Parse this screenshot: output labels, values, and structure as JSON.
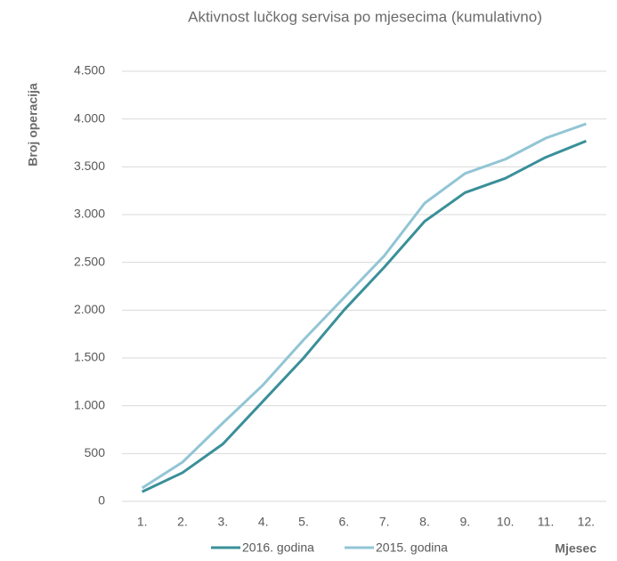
{
  "chart_data": {
    "type": "line",
    "title": "Aktivnost lučkog servisa po mjesecima (kumulativno)",
    "y_label": "Broj operacija",
    "x_label": "Mjesec",
    "categories": [
      "1.",
      "2.",
      "3.",
      "4.",
      "5.",
      "6.",
      "7.",
      "8.",
      "9.",
      "10.",
      "11.",
      "12."
    ],
    "series": [
      {
        "name": "2016. godina",
        "color": "#3a8f99",
        "values": [
          100,
          300,
          600,
          1050,
          1500,
          2000,
          2450,
          2930,
          3230,
          3380,
          3600,
          3770
        ]
      },
      {
        "name": "2015. godina",
        "color": "#92c5d5",
        "values": [
          140,
          410,
          820,
          1220,
          1690,
          2130,
          2570,
          3120,
          3430,
          3580,
          3800,
          3950
        ]
      }
    ],
    "ylim": [
      0,
      4500
    ],
    "yticks": [
      0,
      500,
      {
        "value": 1000,
        "label": "1.000"
      },
      {
        "value": 1500,
        "label": "1.500"
      },
      {
        "value": 2000,
        "label": "2.000"
      },
      {
        "value": 2500,
        "label": "2.500"
      },
      {
        "value": 3000,
        "label": "3.000"
      },
      {
        "value": 3500,
        "label": "3.500"
      },
      {
        "value": 4000,
        "label": "4.000"
      },
      {
        "value": 4500,
        "label": "4.500"
      }
    ],
    "grid": true,
    "legend": "bottom"
  }
}
